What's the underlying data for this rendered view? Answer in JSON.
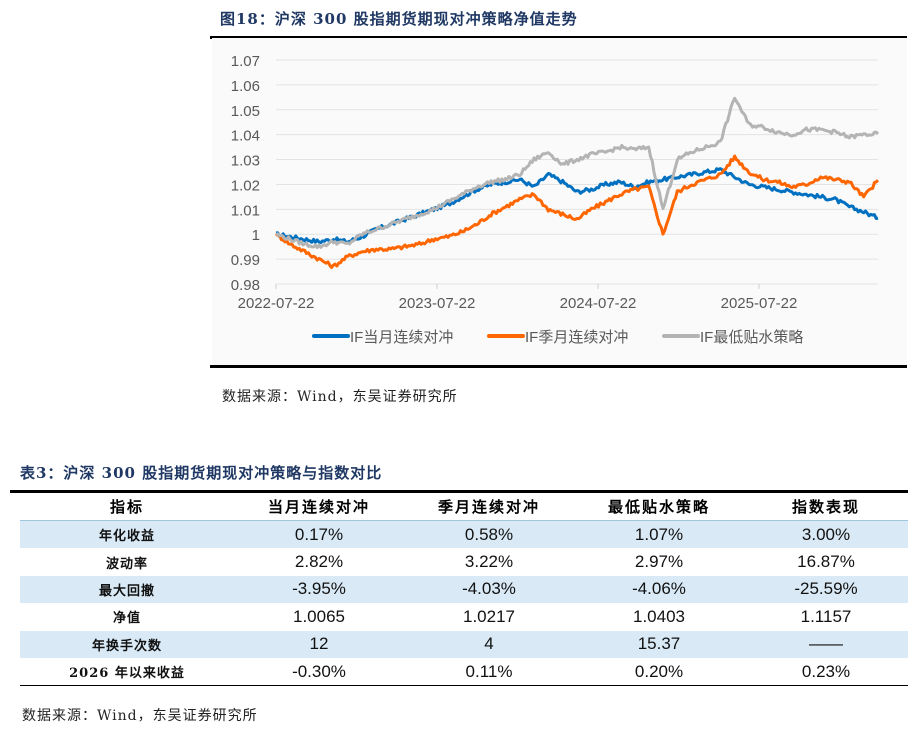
{
  "figure": {
    "title": "图18：沪深 300 股指期货期现对冲策略净值走势",
    "source": "数据来源：Wind，东吴证券研究所"
  },
  "chart_data": {
    "type": "line",
    "title": "沪深 300 股指期货期现对冲策略净值走势",
    "xlabel": "",
    "ylabel": "",
    "ylim": [
      0.98,
      1.07
    ],
    "yticks": [
      "1.07",
      "1.06",
      "1.05",
      "1.04",
      "1.03",
      "1.02",
      "1.01",
      "1",
      "0.99",
      "0.98"
    ],
    "xticks": [
      "2022-07-22",
      "2023-07-22",
      "2024-07-22",
      "2025-07-22"
    ],
    "grid": true,
    "legend_position": "bottom",
    "x": [
      "2022-07",
      "2022-08",
      "2022-09",
      "2022-10",
      "2022-11",
      "2022-12",
      "2023-01",
      "2023-02",
      "2023-03",
      "2023-04",
      "2023-05",
      "2023-06",
      "2023-07",
      "2023-08",
      "2023-09",
      "2023-10",
      "2023-11",
      "2023-12",
      "2024-01",
      "2024-02",
      "2024-03",
      "2024-04",
      "2024-05",
      "2024-06",
      "2024-07",
      "2024-08",
      "2024-09",
      "2024-10",
      "2024-11",
      "2024-12",
      "2025-01",
      "2025-02",
      "2025-03",
      "2025-04",
      "2025-05",
      "2025-06",
      "2025-07",
      "2025-08",
      "2025-09",
      "2025-10",
      "2025-11",
      "2025-12",
      "2026-01"
    ],
    "series": [
      {
        "name": "IF当月连续对冲",
        "color": "#0070c0",
        "values": [
          1.0,
          0.999,
          0.998,
          0.997,
          0.998,
          0.997,
          0.999,
          1.002,
          1.004,
          1.006,
          1.008,
          1.01,
          1.012,
          1.015,
          1.018,
          1.02,
          1.021,
          1.022,
          1.019,
          1.024,
          1.021,
          1.017,
          1.018,
          1.02,
          1.021,
          1.019,
          1.021,
          1.022,
          1.023,
          1.024,
          1.025,
          1.026,
          1.023,
          1.02,
          1.019,
          1.018,
          1.017,
          1.016,
          1.015,
          1.014,
          1.011,
          1.009,
          1.0065
        ]
      },
      {
        "name": "IF季月连续对冲",
        "color": "#ff6600",
        "values": [
          1.0,
          0.996,
          0.993,
          0.99,
          0.987,
          0.991,
          0.993,
          0.994,
          0.994,
          0.995,
          0.996,
          0.998,
          0.999,
          1.001,
          1.004,
          1.008,
          1.011,
          1.014,
          1.016,
          1.01,
          1.008,
          1.006,
          1.01,
          1.013,
          1.016,
          1.018,
          1.019,
          1.0,
          1.017,
          1.02,
          1.022,
          1.024,
          1.031,
          1.025,
          1.022,
          1.021,
          1.019,
          1.02,
          1.023,
          1.022,
          1.021,
          1.015,
          1.0217
        ]
      },
      {
        "name": "IF最低贴水策略",
        "color": "#b4b4b4",
        "values": [
          1.0,
          0.998,
          0.996,
          0.995,
          0.997,
          0.996,
          1.0,
          1.002,
          1.004,
          1.006,
          1.008,
          1.01,
          1.013,
          1.016,
          1.019,
          1.021,
          1.022,
          1.024,
          1.03,
          1.033,
          1.028,
          1.03,
          1.032,
          1.033,
          1.035,
          1.034,
          1.035,
          1.01,
          1.03,
          1.033,
          1.035,
          1.037,
          1.055,
          1.044,
          1.043,
          1.041,
          1.04,
          1.042,
          1.042,
          1.041,
          1.039,
          1.04,
          1.0403
        ]
      }
    ]
  },
  "table": {
    "title": "表3：沪深 300 股指期货期现对冲策略与指数对比",
    "headers": [
      "指标",
      "当月连续对冲",
      "季月连续对冲",
      "最低贴水策略",
      "指数表现"
    ],
    "rows": [
      [
        "年化收益",
        "0.17%",
        "0.58%",
        "1.07%",
        "3.00%"
      ],
      [
        "波动率",
        "2.82%",
        "3.22%",
        "2.97%",
        "16.87%"
      ],
      [
        "最大回撤",
        "-3.95%",
        "-4.03%",
        "-4.06%",
        "-25.59%"
      ],
      [
        "净值",
        "1.0065",
        "1.0217",
        "1.0403",
        "1.1157"
      ],
      [
        "年换手次数",
        "12",
        "4",
        "15.37",
        "——"
      ],
      [
        "2026 年以来收益",
        "-0.30%",
        "0.11%",
        "0.20%",
        "0.23%"
      ]
    ],
    "source": "数据来源：Wind，东吴证券研究所"
  },
  "colors": {
    "title_navy": "#1f3864",
    "row_shade": "#d9eaf6",
    "grid": "#e3e3e3"
  }
}
